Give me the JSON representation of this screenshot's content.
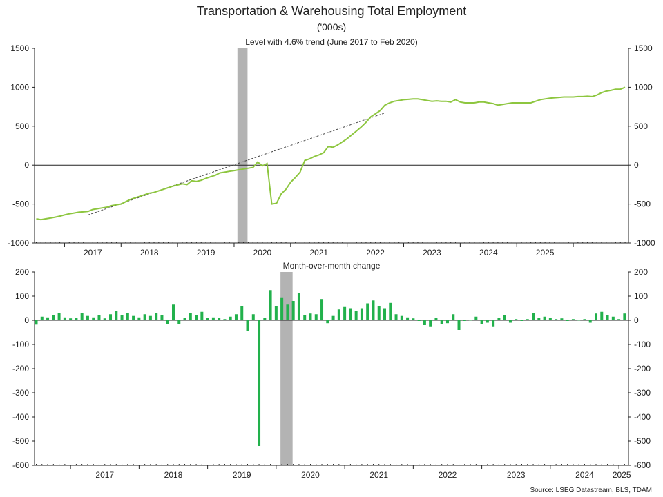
{
  "title": "Transportation & Warehousing Total Employment",
  "subtitle": "('000s)",
  "source": "Source: LSEG Datastream, BLS, TDAM",
  "colors": {
    "line": "#8dc63f",
    "bars": "#22b14c",
    "recession": "#b3b3b3",
    "trend": "#444444",
    "axis": "#222222"
  },
  "chart_data": [
    {
      "type": "line",
      "subtitle": "Level with 4.6% trend (June 2017 to Feb 2020)",
      "x_start": "2016-07",
      "x_tick_labels": [
        "2017",
        "2018",
        "2019",
        "2020",
        "2021",
        "2022",
        "2023",
        "2024",
        "2025"
      ],
      "ylim": [
        -1000,
        1500
      ],
      "y_ticks": [
        -1000,
        -500,
        0,
        500,
        1000,
        1500
      ],
      "shaded_period": [
        "2020-02",
        "2020-04"
      ],
      "series": [
        {
          "values": [
            -690,
            -700,
            -690,
            -680,
            -668,
            -655,
            -640,
            -625,
            -615,
            -605,
            -600,
            -595,
            -570,
            -560,
            -550,
            -540,
            -520,
            -510,
            -500,
            -470,
            -440,
            -420,
            -400,
            -380,
            -360,
            -350,
            -330,
            -310,
            -290,
            -270,
            -255,
            -240,
            -250,
            -200,
            -210,
            -195,
            -170,
            -150,
            -130,
            -100,
            -90,
            -80,
            -70,
            -60,
            -50,
            -40,
            -30,
            40,
            -10,
            20,
            -500,
            -490,
            -370,
            -310,
            -220,
            -160,
            -90,
            60,
            80,
            110,
            130,
            160,
            240,
            230,
            260,
            300,
            340,
            390,
            440,
            490,
            550,
            620,
            660,
            700,
            770,
            800,
            820,
            830,
            840,
            845,
            850,
            850,
            840,
            830,
            820,
            825,
            820,
            820,
            810,
            840,
            810,
            800,
            800,
            800,
            810,
            810,
            800,
            790,
            770,
            780,
            790,
            800,
            800,
            800,
            800,
            800,
            820,
            840,
            850,
            860,
            865,
            870,
            875,
            875,
            875,
            880,
            880,
            885,
            880,
            900,
            930,
            950,
            960,
            975,
            975,
            1000
          ]
        }
      ],
      "trend_line": {
        "start": [
          "2017-06",
          -640
        ],
        "end": [
          "2022-09",
          670
        ]
      }
    },
    {
      "type": "bar",
      "subtitle": "Month-over-month change",
      "x_start": "2016-07",
      "x_tick_labels": [
        "2017",
        "2018",
        "2019",
        "2020",
        "2021",
        "2022",
        "2023",
        "2024",
        "2025"
      ],
      "ylim": [
        -600,
        200
      ],
      "y_ticks": [
        -600,
        -500,
        -400,
        -300,
        -200,
        -100,
        0,
        100,
        200
      ],
      "shaded_period": [
        "2020-02",
        "2020-04"
      ],
      "series": [
        {
          "values": [
            -18,
            15,
            12,
            20,
            30,
            12,
            8,
            10,
            30,
            18,
            12,
            20,
            8,
            25,
            38,
            20,
            30,
            18,
            12,
            25,
            18,
            30,
            20,
            -15,
            65,
            -15,
            10,
            30,
            20,
            35,
            10,
            12,
            10,
            5,
            15,
            25,
            58,
            -45,
            25,
            -520,
            10,
            125,
            60,
            95,
            65,
            80,
            112,
            20,
            28,
            25,
            88,
            -12,
            18,
            45,
            55,
            50,
            40,
            50,
            70,
            82,
            60,
            50,
            72,
            25,
            18,
            12,
            8,
            0,
            -20,
            -25,
            10,
            -15,
            -12,
            25,
            -40,
            0,
            2,
            15,
            -15,
            -10,
            -25,
            10,
            20,
            -10,
            5,
            -2,
            5,
            30,
            10,
            15,
            10,
            5,
            8,
            0,
            5,
            2,
            5,
            -10,
            28,
            35,
            20,
            15,
            5,
            28
          ]
        }
      ]
    }
  ]
}
